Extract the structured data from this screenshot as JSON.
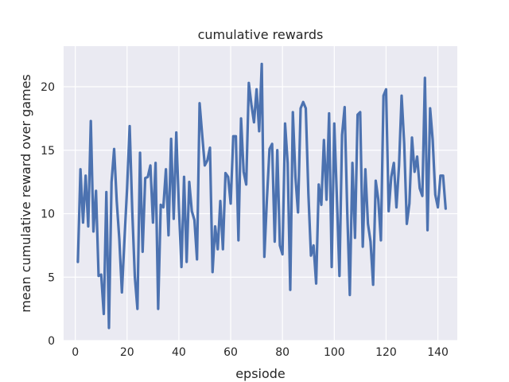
{
  "chart_data": {
    "type": "line",
    "title": "cumulative rewards",
    "xlabel": "epsiode",
    "ylabel": "mean cumulative reward over games",
    "xlim": [
      -4.5,
      147.5
    ],
    "ylim": [
      0,
      23.2
    ],
    "xticks": [
      0,
      20,
      40,
      60,
      80,
      100,
      120,
      140
    ],
    "yticks": [
      0,
      5,
      10,
      15,
      20
    ],
    "grid": true,
    "colors": {
      "background": "#eaeaf2",
      "grid": "#ffffff",
      "line": "#4c72b0",
      "text": "#262626"
    },
    "series": [
      {
        "values": [
          6.2,
          13.5,
          9.3,
          13.0,
          9.0,
          17.3,
          8.6,
          11.8,
          5.1,
          5.2,
          2.1,
          11.7,
          1.0,
          12.5,
          15.1,
          11.0,
          8.0,
          3.8,
          8.0,
          12.0,
          16.9,
          10.2,
          5.0,
          2.5,
          14.8,
          7.0,
          12.8,
          12.9,
          13.8,
          9.3,
          14.0,
          2.5,
          10.7,
          10.5,
          13.5,
          8.3,
          15.9,
          9.6,
          16.4,
          10.5,
          5.8,
          12.9,
          6.2,
          12.5,
          10.2,
          9.5,
          6.4,
          18.7,
          16.2,
          13.8,
          14.2,
          15.2,
          5.4,
          9.0,
          7.2,
          11.0,
          7.2,
          13.2,
          12.9,
          10.8,
          16.1,
          16.1,
          7.9,
          17.5,
          13.3,
          12.3,
          20.3,
          18.6,
          17.2,
          19.8,
          16.5,
          21.8,
          6.6,
          11.2,
          15.1,
          15.5,
          7.8,
          15.0,
          7.5,
          6.8,
          17.1,
          14.0,
          4.0,
          18.0,
          12.9,
          10.1,
          18.3,
          18.8,
          18.3,
          11.6,
          6.7,
          7.5,
          4.5,
          12.3,
          10.7,
          15.8,
          11.1,
          17.9,
          5.8,
          17.1,
          11.3,
          5.1,
          16.2,
          18.4,
          10.2,
          3.6,
          14.0,
          8.1,
          17.8,
          18.0,
          7.4,
          13.5,
          9.2,
          7.8,
          4.4,
          12.6,
          11.1,
          7.9,
          19.3,
          19.8,
          10.2,
          12.9,
          14.0,
          10.5,
          13.8,
          19.3,
          15.5,
          9.2,
          10.8,
          16.0,
          13.3,
          14.5,
          12.0,
          11.4,
          20.7,
          8.7,
          18.3,
          15.8,
          11.5,
          10.5,
          13.0,
          13.0,
          10.4
        ]
      }
    ]
  }
}
